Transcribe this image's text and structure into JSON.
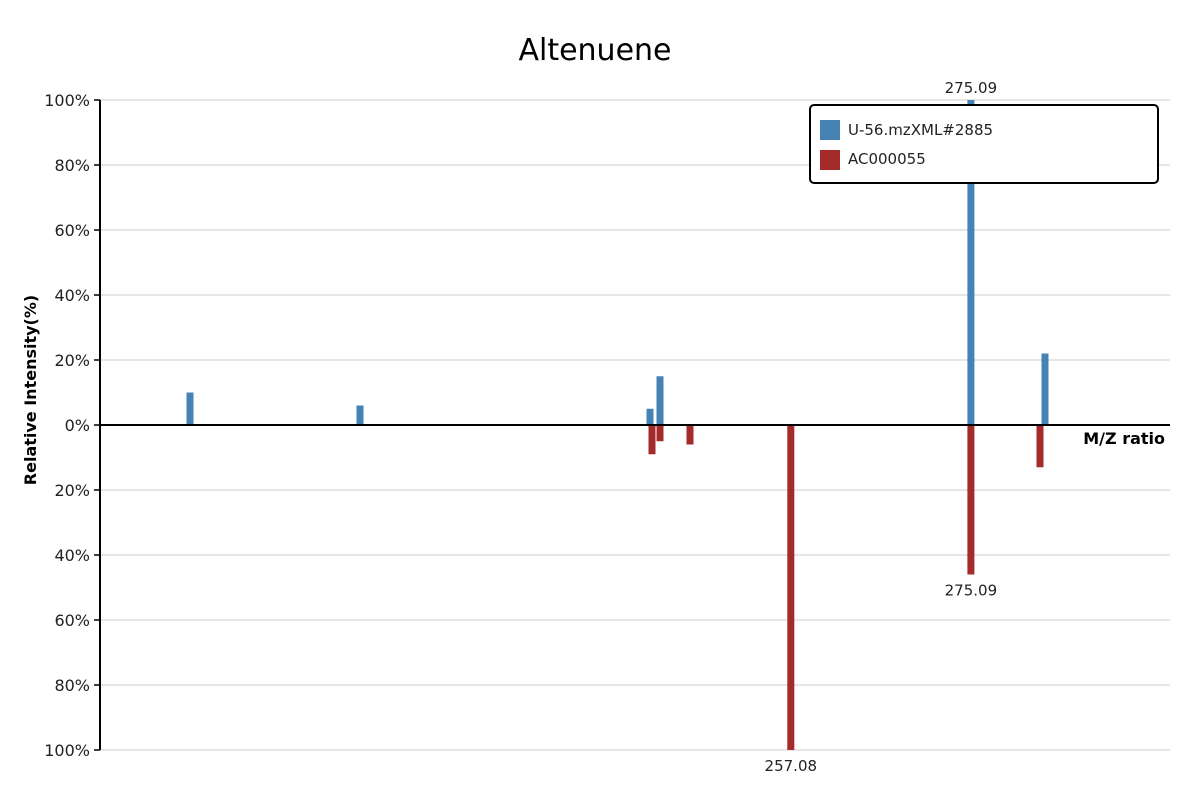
{
  "chart_data": {
    "type": "bar",
    "title": "Altenuene",
    "xlabel": "M/Z ratio",
    "ylabel": "Relative Intensity(%)",
    "ylim": [
      -100,
      100
    ],
    "yticks": [
      {
        "value": 100,
        "label": "100%"
      },
      {
        "value": 80,
        "label": "80%"
      },
      {
        "value": 60,
        "label": "60%"
      },
      {
        "value": 40,
        "label": "40%"
      },
      {
        "value": 20,
        "label": "20%"
      },
      {
        "value": 0,
        "label": "0%"
      },
      {
        "value": -20,
        "label": "20%"
      },
      {
        "value": -40,
        "label": "40%"
      },
      {
        "value": -60,
        "label": "60%"
      },
      {
        "value": -80,
        "label": "80%"
      },
      {
        "value": -100,
        "label": "100%"
      }
    ],
    "xrange": [
      188.0,
      295.0
    ],
    "grid": true,
    "legend_position": "top-right",
    "series": [
      {
        "name": "U-56.mzXML#2885",
        "color": "#4682b4",
        "direction": "up",
        "peaks": [
          {
            "mz": 197.0,
            "intensity": 10
          },
          {
            "mz": 214.0,
            "intensity": 6
          },
          {
            "mz": 243.0,
            "intensity": 5
          },
          {
            "mz": 244.0,
            "intensity": 15
          },
          {
            "mz": 275.09,
            "intensity": 100,
            "label": "275.09"
          },
          {
            "mz": 282.5,
            "intensity": 22
          }
        ]
      },
      {
        "name": "AC000055",
        "color": "#a52a2a",
        "direction": "down",
        "peaks": [
          {
            "mz": 243.2,
            "intensity": 9
          },
          {
            "mz": 244.0,
            "intensity": 5
          },
          {
            "mz": 247.0,
            "intensity": 6
          },
          {
            "mz": 257.08,
            "intensity": 100,
            "label": "257.08"
          },
          {
            "mz": 275.09,
            "intensity": 46,
            "label": "275.09"
          },
          {
            "mz": 282.0,
            "intensity": 13
          }
        ]
      }
    ]
  }
}
